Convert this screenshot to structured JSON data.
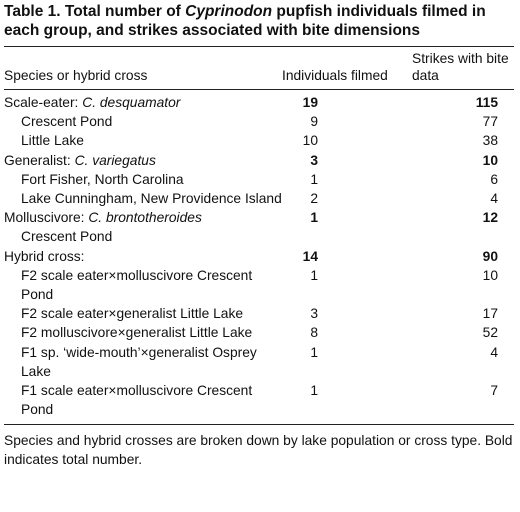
{
  "title": {
    "prefix": "Table 1. Total number of ",
    "italic": "Cyprinodon",
    "suffix": " pupfish individuals filmed in each group, and strikes associated with bite dimensions"
  },
  "headers": {
    "col1": "Species or hybrid cross",
    "col2": "Individuals filmed",
    "col3": "Strikes with bite data"
  },
  "rows": [
    {
      "type": "group",
      "label_prefix": "Scale-eater: ",
      "label_italic": "C. desquamator",
      "individuals": "19",
      "strikes": "115"
    },
    {
      "type": "sub",
      "label": "Crescent Pond",
      "individuals": "9",
      "strikes": "77"
    },
    {
      "type": "sub",
      "label": "Little Lake",
      "individuals": "10",
      "strikes": "38"
    },
    {
      "type": "group",
      "label_prefix": "Generalist: ",
      "label_italic": "C. variegatus",
      "individuals": "3",
      "strikes": "10"
    },
    {
      "type": "sub",
      "label": "Fort Fisher, North Carolina",
      "individuals": "1",
      "strikes": "6"
    },
    {
      "type": "sub",
      "label": "Lake Cunningham, New Providence Island",
      "individuals": "2",
      "strikes": "4"
    },
    {
      "type": "group",
      "label_prefix": "Molluscivore: ",
      "label_italic": "C. brontotheroides",
      "individuals": "1",
      "strikes": "12"
    },
    {
      "type": "sub",
      "label": "Crescent Pond",
      "individuals": "",
      "strikes": ""
    },
    {
      "type": "group",
      "label_prefix": "Hybrid cross:",
      "label_italic": "",
      "individuals": "14",
      "strikes": "90"
    },
    {
      "type": "sub",
      "label": "F2 scale eater×molluscivore Crescent Pond",
      "individuals": "1",
      "strikes": "10"
    },
    {
      "type": "sub",
      "label": "F2 scale eater×generalist Little Lake",
      "individuals": "3",
      "strikes": "17"
    },
    {
      "type": "sub",
      "label": "F2 molluscivore×generalist Little Lake",
      "individuals": "8",
      "strikes": "52"
    },
    {
      "type": "sub",
      "label": "F1 sp. ‘wide-mouth’×generalist Osprey Lake",
      "individuals": "1",
      "strikes": "4"
    },
    {
      "type": "sub",
      "label": "F1 scale eater×molluscivore Crescent Pond",
      "individuals": "1",
      "strikes": "7"
    }
  ],
  "footnote": "Species and hybrid crosses are broken down by lake population or cross type. Bold indicates total number."
}
